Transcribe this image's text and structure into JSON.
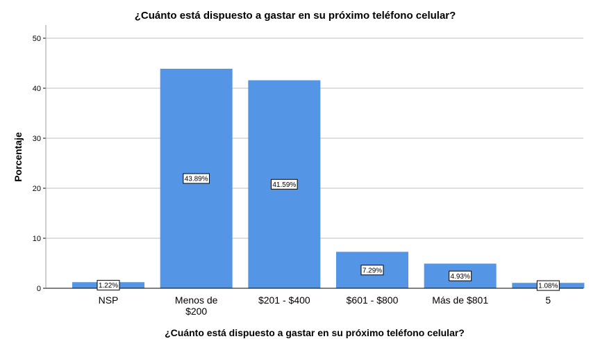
{
  "chart_data": {
    "type": "bar",
    "title": "¿Cuánto está dispuesto a gastar en su próximo teléfono celular?",
    "xlabel": "¿Cuánto está dispuesto a gastar en su próximo teléfono celular?",
    "ylabel": "Porcentaje",
    "categories": [
      [
        "NSP"
      ],
      [
        "Menos de",
        "$200"
      ],
      [
        "$201 - $400"
      ],
      [
        "$601 - $800"
      ],
      [
        "Más de $801"
      ],
      [
        "5"
      ]
    ],
    "values": [
      1.22,
      43.89,
      41.59,
      7.29,
      4.93,
      1.08
    ],
    "data_labels": [
      "1.22%",
      "43.89%",
      "41.59%",
      "7.29%",
      "4.93%",
      "1.08%"
    ],
    "ylim": [
      0,
      50
    ],
    "yticks": [
      0,
      10,
      20,
      30,
      40,
      50
    ],
    "grid": true,
    "bar_color": "#5595e5",
    "grid_color": "#bfbfbf"
  }
}
